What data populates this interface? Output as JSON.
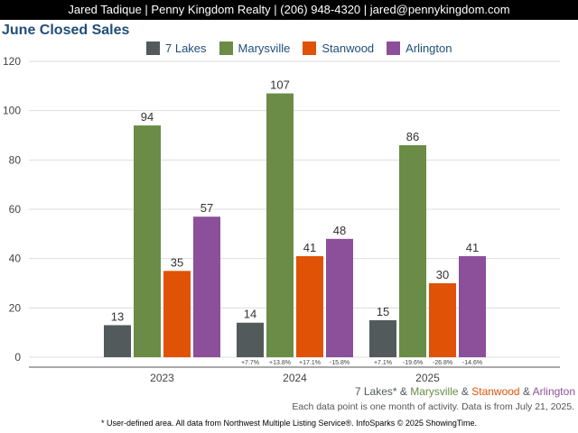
{
  "header": {
    "contact": "Jared Tadique | Penny Kingdom Realty | (206) 948-4320 | jared@pennykingdom.com"
  },
  "chart_data": {
    "type": "bar",
    "title": "June Closed Sales",
    "categories": [
      "2023",
      "2024",
      "2025"
    ],
    "series": [
      {
        "name": "7 Lakes",
        "color": "#525a5c",
        "values": [
          13,
          14,
          15
        ],
        "changes": [
          "",
          "+7.7%",
          "+7.1%"
        ]
      },
      {
        "name": "Marysville",
        "color": "#6a8c47",
        "values": [
          94,
          107,
          86
        ],
        "changes": [
          "",
          "+13.8%",
          "-19.6%"
        ]
      },
      {
        "name": "Stanwood",
        "color": "#e05206",
        "values": [
          35,
          41,
          30
        ],
        "changes": [
          "",
          "+17.1%",
          "-26.8%"
        ]
      },
      {
        "name": "Arlington",
        "color": "#8c4f9a",
        "values": [
          57,
          48,
          41
        ],
        "changes": [
          "",
          "-15.8%",
          "-14.6%"
        ]
      }
    ],
    "ylim": [
      0,
      120
    ],
    "yticks": [
      0,
      20,
      40,
      60,
      80,
      100,
      120
    ],
    "grid": true,
    "legend": "top"
  },
  "footer": {
    "legend_parts": [
      {
        "text": "7 Lakes*",
        "color": "#525a5c"
      },
      {
        "text": " & ",
        "color": "#525a5c"
      },
      {
        "text": "Marysville",
        "color": "#6a8c47"
      },
      {
        "text": " & ",
        "color": "#525a5c"
      },
      {
        "text": "Stanwood",
        "color": "#e05206"
      },
      {
        "text": " & ",
        "color": "#525a5c"
      },
      {
        "text": "Arlington",
        "color": "#8c4f9a"
      }
    ],
    "note": "Each data point is one month of activity. Data is from July 21, 2025.",
    "disclaimer": "* User-defined area. All data from Northwest Multiple Listing Service®. InfoSparks © 2025 ShowingTime."
  }
}
